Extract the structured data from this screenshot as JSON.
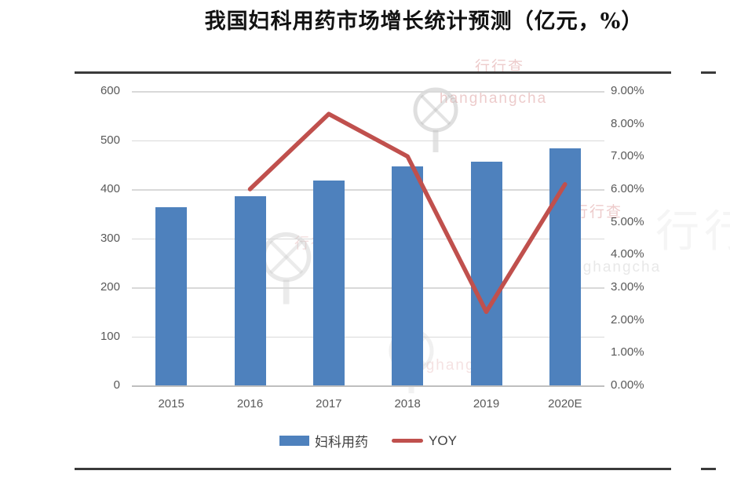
{
  "title": "我国妇科用药市场增长统计预测（亿元，%）",
  "chart_data": {
    "type": "bar",
    "note": "combo bar+line, dual axis",
    "title": "我国妇科用药市场增长统计预测（亿元，%）",
    "categories": [
      "2015",
      "2016",
      "2017",
      "2018",
      "2019",
      "2020E"
    ],
    "series": [
      {
        "name": "妇科用药",
        "type": "bar",
        "axis": "left",
        "values": [
          363,
          385,
          417,
          447,
          456,
          483
        ]
      },
      {
        "name": "YOY",
        "type": "line",
        "axis": "right",
        "values": [
          null,
          6.0,
          8.3,
          7.0,
          2.25,
          6.15
        ]
      }
    ],
    "left_axis": {
      "min": 0,
      "max": 600,
      "step": 100,
      "ticks": [
        "600",
        "500",
        "400",
        "300",
        "200",
        "100",
        "0"
      ]
    },
    "right_axis": {
      "min": 0,
      "max": 9,
      "step": 1,
      "ticks": [
        "9.00%",
        "8.00%",
        "7.00%",
        "6.00%",
        "5.00%",
        "4.00%",
        "3.00%",
        "2.00%",
        "1.00%",
        "0.00%"
      ]
    },
    "grid": true,
    "legend_position": "bottom"
  },
  "legend": {
    "items": [
      {
        "label": "妇科用药",
        "swatch": "bar"
      },
      {
        "label": "YOY",
        "swatch": "line"
      }
    ]
  },
  "colors": {
    "bar": "#4e81bd",
    "line": "#c0504d",
    "grid": "#d9d9d9",
    "axis_text": "#595959",
    "frame": "#3a3a3a",
    "watermark_pink": "#dea0a0",
    "watermark_gray": "#bebebe"
  },
  "watermark": {
    "text": "行行查",
    "subtext": "hanghangcha"
  }
}
